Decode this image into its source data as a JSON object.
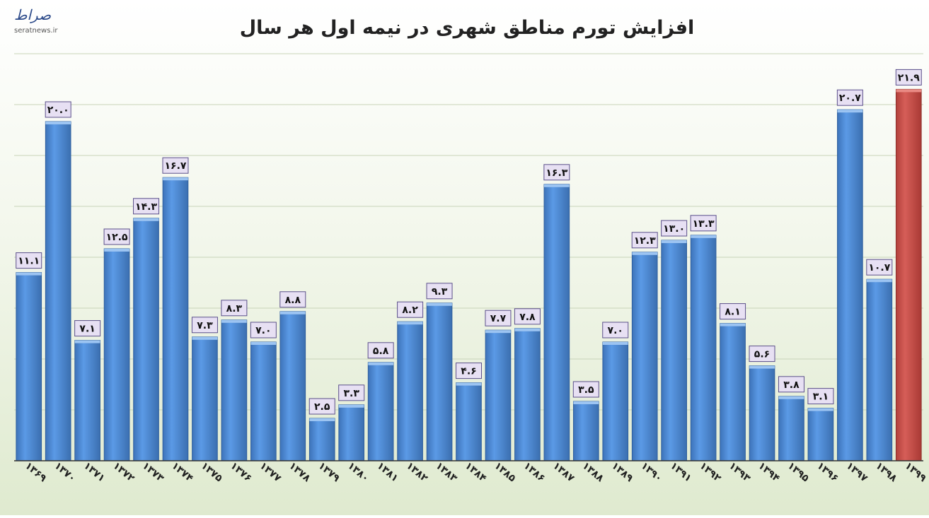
{
  "chart_data": {
    "type": "bar",
    "title": "افزایش تورم مناطق شهری در نیمه اول هر سال",
    "categories": [
      "۱۳۶۹",
      "۱۳۷۰",
      "۱۳۷۱",
      "۱۳۷۲",
      "۱۳۷۳",
      "۱۳۷۴",
      "۱۳۷۵",
      "۱۳۷۶",
      "۱۳۷۷",
      "۱۳۷۸",
      "۱۳۷۹",
      "۱۳۸۰",
      "۱۳۸۱",
      "۱۳۸۲",
      "۱۳۸۳",
      "۱۳۸۴",
      "۱۳۸۵",
      "۱۳۸۶",
      "۱۳۸۷",
      "۱۳۸۸",
      "۱۳۸۹",
      "۱۳۹۰",
      "۱۳۹۱",
      "۱۳۹۲",
      "۱۳۹۳",
      "۱۳۹۴",
      "۱۳۹۵",
      "۱۳۹۶",
      "۱۳۹۷",
      "۱۳۹۸",
      "۱۳۹۹"
    ],
    "values": [
      11.1,
      20.0,
      7.1,
      12.5,
      14.3,
      16.7,
      7.3,
      8.3,
      7.0,
      8.8,
      2.5,
      3.3,
      5.8,
      8.2,
      9.3,
      4.6,
      7.7,
      7.8,
      16.3,
      3.5,
      7.0,
      12.3,
      13.0,
      13.3,
      8.1,
      5.6,
      3.8,
      3.1,
      20.7,
      10.7,
      21.9
    ],
    "value_labels": [
      "۱۱.۱",
      "۲۰.۰",
      "۷.۱",
      "۱۲.۵",
      "۱۴.۳",
      "۱۶.۷",
      "۷.۳",
      "۸.۳",
      "۷.۰",
      "۸.۸",
      "۲.۵",
      "۳.۳",
      "۵.۸",
      "۸.۲",
      "۹.۳",
      "۴.۶",
      "۷.۷",
      "۷.۸",
      "۱۶.۳",
      "۳.۵",
      "۷.۰",
      "۱۲.۳",
      "۱۳.۰",
      "۱۳.۳",
      "۸.۱",
      "۵.۶",
      "۳.۸",
      "۳.۱",
      "۲۰.۷",
      "۱۰.۷",
      "۲۱.۹"
    ],
    "ylim": [
      0,
      24
    ],
    "grid": true,
    "legend": "none",
    "colors": {
      "bar": "#4f8fd9",
      "highlight": "#c9504b",
      "label_bg": "#e7e0f3",
      "label_border": "#5b4f8a",
      "grid": "#c8d4b8"
    },
    "highlight_index": 30
  },
  "watermark": {
    "script": "صراط",
    "url": "seratnews.ir"
  }
}
